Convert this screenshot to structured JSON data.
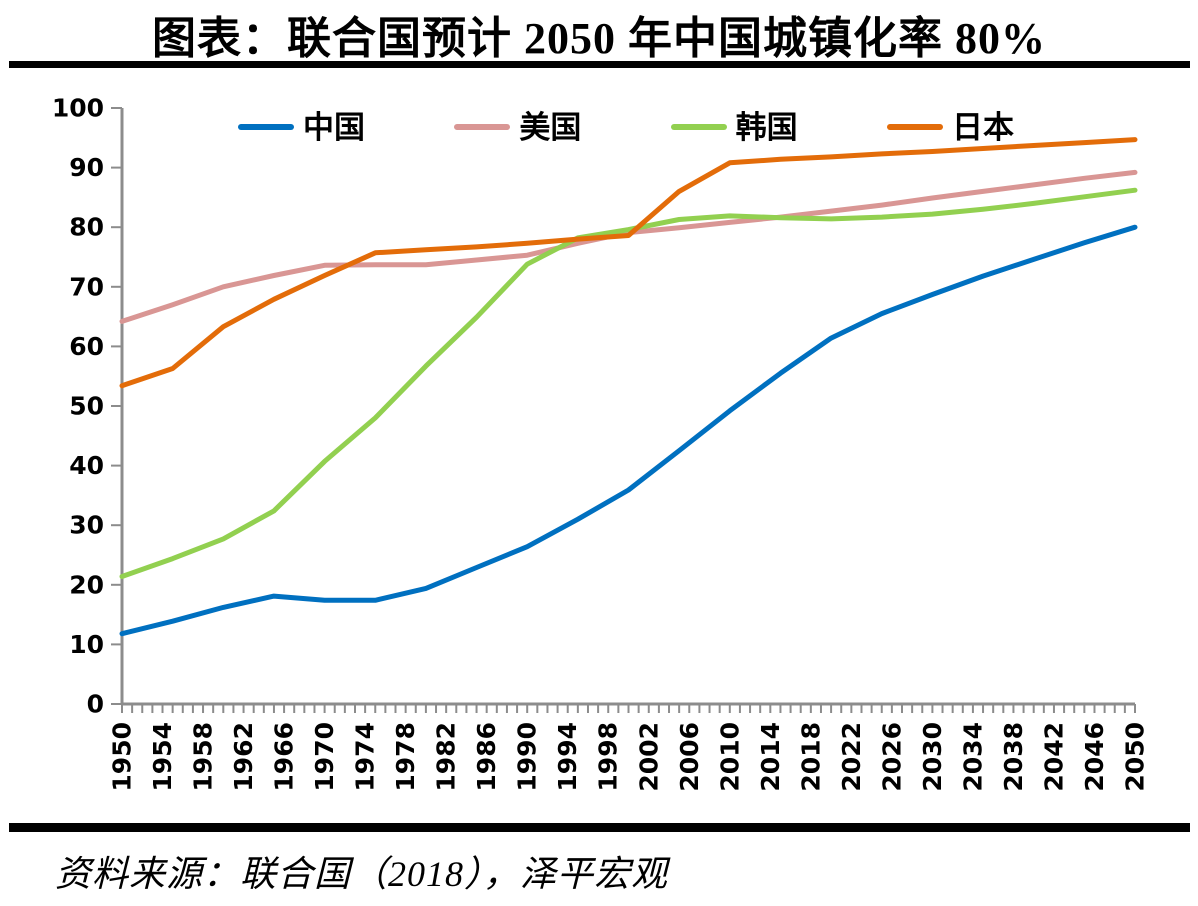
{
  "source_note": "资料来源：联合国（2018），泽平宏观",
  "colors": {
    "axis": "#8C8C8C",
    "divider": "#000000",
    "text": "#000000"
  },
  "chart_data": {
    "type": "line",
    "title": "图表：联合国预计 2050 年中国城镇化率 80%",
    "xlabel": "",
    "ylabel": "",
    "xlim": [
      1950,
      2050
    ],
    "ylim": [
      0,
      100
    ],
    "yticks": [
      0,
      10,
      20,
      30,
      40,
      50,
      60,
      70,
      80,
      90,
      100
    ],
    "xtick_labels": [
      "1950",
      "1954",
      "1958",
      "1962",
      "1966",
      "1970",
      "1974",
      "1978",
      "1982",
      "1986",
      "1990",
      "1994",
      "1998",
      "2002",
      "2006",
      "2010",
      "2014",
      "2018",
      "2022",
      "2026",
      "2030",
      "2034",
      "2038",
      "2042",
      "2046",
      "2050"
    ],
    "xminor_step": 1,
    "grid": false,
    "legend_position": "top",
    "x": [
      1950,
      1955,
      1960,
      1965,
      1970,
      1975,
      1980,
      1985,
      1990,
      1995,
      2000,
      2005,
      2010,
      2015,
      2020,
      2025,
      2030,
      2035,
      2040,
      2045,
      2050
    ],
    "series": [
      {
        "id": "china",
        "name": "中国",
        "color": "#0070C0",
        "values": [
          11.8,
          13.9,
          16.2,
          18.1,
          17.4,
          17.4,
          19.4,
          22.9,
          26.4,
          31.0,
          35.9,
          42.5,
          49.2,
          55.5,
          61.4,
          65.5,
          68.7,
          71.8,
          74.6,
          77.4,
          80.0
        ]
      },
      {
        "id": "usa",
        "name": "美国",
        "color": "#D99694",
        "values": [
          64.2,
          67.0,
          70.0,
          71.9,
          73.6,
          73.7,
          73.7,
          74.5,
          75.3,
          77.3,
          79.1,
          79.9,
          80.8,
          81.7,
          82.7,
          83.7,
          84.9,
          86.0,
          87.1,
          88.2,
          89.2
        ]
      },
      {
        "id": "korea",
        "name": "韩国",
        "color": "#92D050",
        "values": [
          21.4,
          24.4,
          27.7,
          32.4,
          40.7,
          48.0,
          56.7,
          64.9,
          73.8,
          78.2,
          79.6,
          81.3,
          81.9,
          81.6,
          81.4,
          81.7,
          82.2,
          83.0,
          84.0,
          85.1,
          86.2
        ]
      },
      {
        "id": "japan",
        "name": "日本",
        "color": "#E36C09",
        "values": [
          53.4,
          56.3,
          63.3,
          67.9,
          71.9,
          75.7,
          76.2,
          76.7,
          77.3,
          78.0,
          78.6,
          86.0,
          90.8,
          91.4,
          91.8,
          92.3,
          92.7,
          93.2,
          93.7,
          94.2,
          94.7
        ]
      }
    ]
  }
}
